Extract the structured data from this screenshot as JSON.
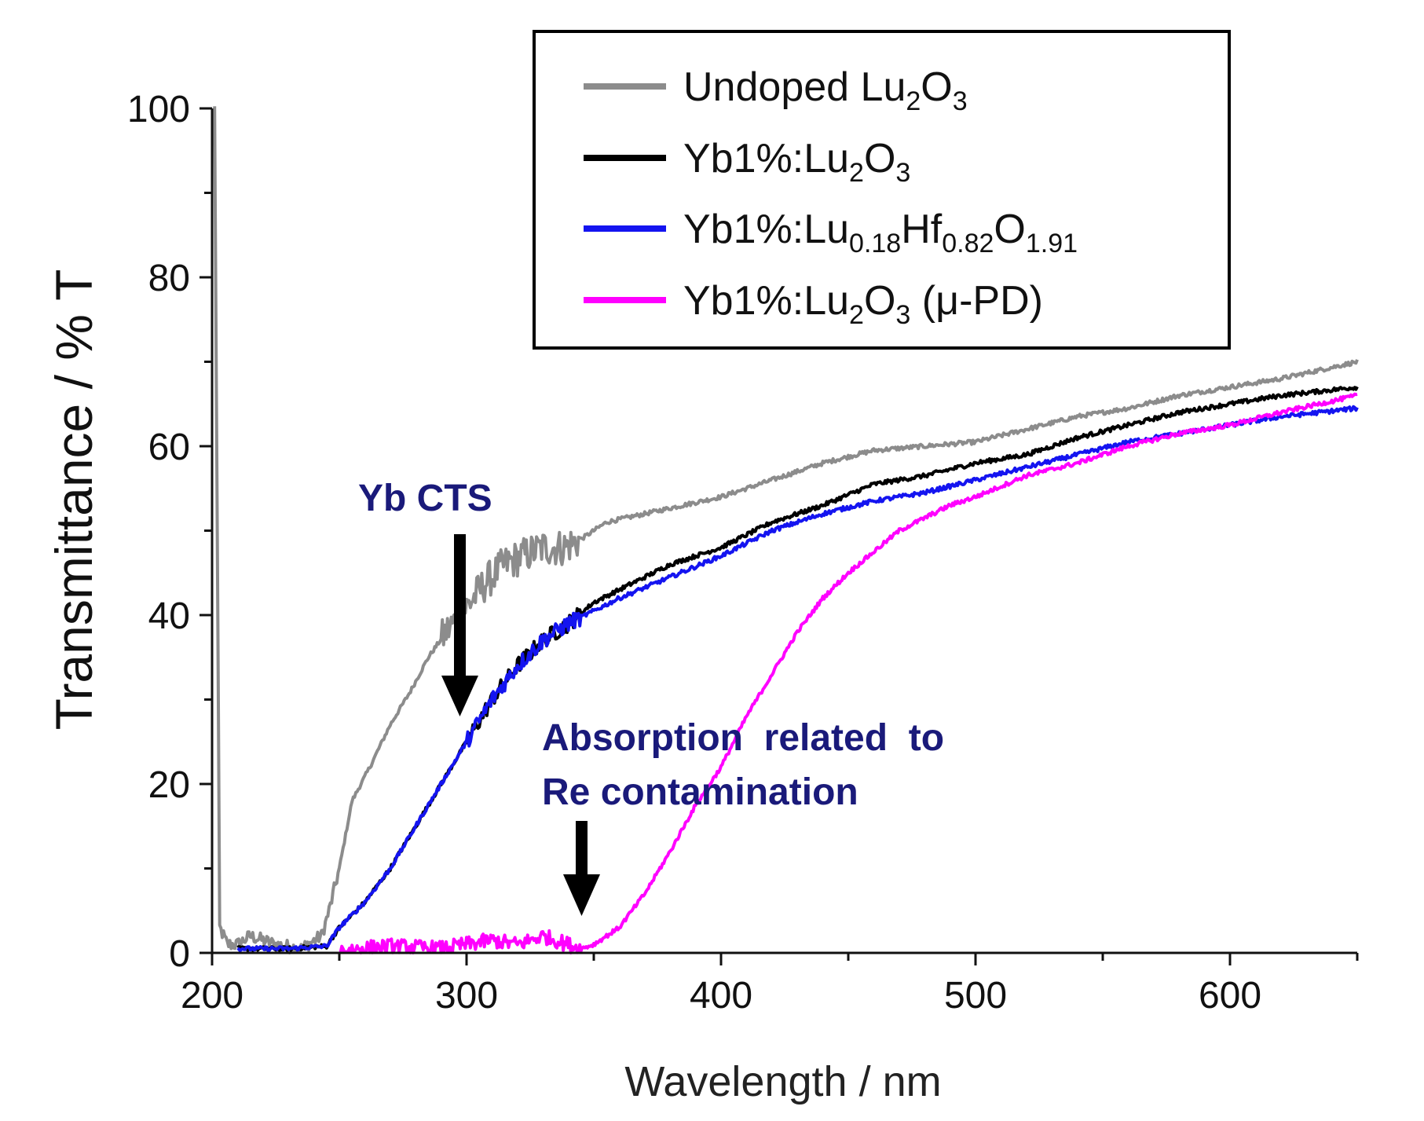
{
  "chart_data": {
    "type": "line",
    "xlabel": "Wavelength / nm",
    "ylabel": "Transmittance / % T",
    "xlim": [
      200,
      650
    ],
    "ylim": [
      0,
      100
    ],
    "x_ticks": [
      "200",
      "300",
      "400",
      "500",
      "600"
    ],
    "y_ticks": [
      "0",
      "20",
      "40",
      "60",
      "80",
      "100"
    ],
    "legend_position": "top-right",
    "series": [
      {
        "name": "Undoped Lu2O3",
        "legend_main": "Undoped Lu",
        "legend_sub1": "2",
        "legend_mid1": "O",
        "legend_sub2": "3",
        "legend_tail": "",
        "color": "#8c8c8c",
        "x": [
          201,
          203,
          206,
          210,
          215,
          225,
          235,
          243,
          246,
          250,
          255,
          262,
          270,
          278,
          285,
          292,
          300,
          308,
          315,
          322,
          330,
          338,
          345,
          355,
          370,
          385,
          400,
          420,
          440,
          460,
          480,
          500,
          520,
          540,
          560,
          580,
          600,
          620,
          650
        ],
        "y": [
          100,
          3,
          1,
          1,
          2,
          1,
          0.5,
          2,
          5,
          10,
          18,
          22,
          27,
          31,
          35,
          38,
          41,
          44,
          46,
          47,
          48,
          48,
          49,
          51,
          52,
          53,
          54,
          56,
          58,
          59.5,
          60,
          60.5,
          62,
          63.5,
          64.5,
          66,
          67,
          68,
          70
        ]
      },
      {
        "name": "Yb1%:Lu2O3",
        "legend_main": "Yb1%:Lu",
        "legend_sub1": "2",
        "legend_mid1": "O",
        "legend_sub2": "3",
        "legend_tail": "",
        "color": "#000000",
        "x": [
          210,
          230,
          245,
          250,
          260,
          270,
          280,
          290,
          300,
          310,
          320,
          330,
          340,
          350,
          360,
          380,
          400,
          420,
          440,
          460,
          480,
          500,
          520,
          540,
          560,
          580,
          600,
          620,
          650
        ],
        "y": [
          0.5,
          0.5,
          0.8,
          3,
          6,
          10,
          15,
          20,
          25,
          30,
          34,
          37,
          39,
          41.5,
          43,
          46,
          48,
          51,
          53,
          55.5,
          56.5,
          58,
          59,
          61,
          62.5,
          64,
          65,
          66,
          67
        ]
      },
      {
        "name": "Yb1%:Lu0.18Hf0.82O1.91",
        "legend_main": "Yb1%:Lu",
        "legend_sub1": "0.18",
        "legend_mid1": "Hf",
        "legend_sub2": "0.82",
        "legend_mid2": "O",
        "legend_sub3": "1.91",
        "legend_tail": "",
        "color": "#1414f0",
        "x": [
          210,
          230,
          245,
          250,
          260,
          270,
          280,
          290,
          300,
          310,
          320,
          330,
          340,
          350,
          360,
          380,
          400,
          420,
          440,
          460,
          480,
          500,
          520,
          540,
          560,
          580,
          600,
          620,
          650
        ],
        "y": [
          0.5,
          0.5,
          0.8,
          3,
          6,
          10,
          15,
          20,
          25,
          30,
          34,
          37,
          39,
          40.5,
          42,
          44.5,
          47,
          50,
          52,
          53.5,
          54.5,
          56,
          57.5,
          59,
          60.5,
          61.5,
          62.5,
          63.5,
          64.5
        ]
      },
      {
        "name": "Yb1%:Lu2O3 (μ-PD)",
        "legend_main": "Yb1%:Lu",
        "legend_sub1": "2",
        "legend_mid1": "O",
        "legend_sub2": "3",
        "legend_tail": " (μ-PD)",
        "color": "#ff00ff",
        "x": [
          250,
          270,
          290,
          300,
          310,
          320,
          330,
          340,
          345,
          350,
          360,
          370,
          380,
          390,
          400,
          410,
          420,
          430,
          440,
          450,
          460,
          470,
          480,
          490,
          500,
          520,
          540,
          560,
          580,
          600,
          620,
          650
        ],
        "y": [
          0.3,
          0.8,
          0.5,
          1,
          1.5,
          1,
          2,
          1,
          0.5,
          1,
          3,
          7,
          12,
          17.5,
          22,
          28,
          33,
          38,
          42,
          45,
          47.5,
          50,
          51.5,
          53,
          54,
          56.5,
          58,
          60,
          61.5,
          62.5,
          64,
          66
        ]
      }
    ],
    "annotations": [
      {
        "text": "Yb CTS",
        "color": "#1a1a7a"
      },
      {
        "text": "Absorption  related  to",
        "color": "#1a1a7a"
      },
      {
        "text": "Re contamination",
        "color": "#1a1a7a"
      }
    ]
  }
}
